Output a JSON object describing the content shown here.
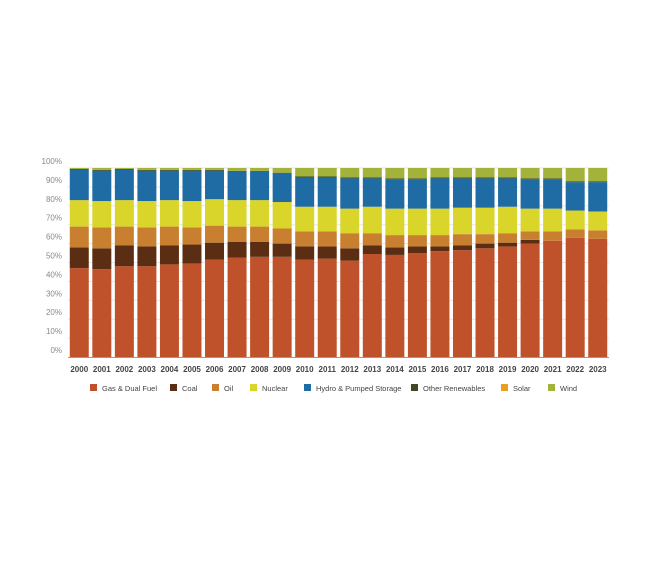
{
  "chart_data": {
    "type": "bar",
    "stacked": "percent",
    "categories": [
      "2000",
      "2001",
      "2002",
      "2003",
      "2004",
      "2005",
      "2006",
      "2007",
      "2008",
      "2009",
      "2010",
      "2011",
      "2012",
      "2013",
      "2014",
      "2015",
      "2016",
      "2017",
      "2018",
      "2019",
      "2020",
      "2021",
      "2022",
      "2023"
    ],
    "series": [
      {
        "name": "Gas & Dual Fuel",
        "color": "#c0522b",
        "values": [
          47,
          46.5,
          48,
          48,
          49,
          49.5,
          51.5,
          52.5,
          53,
          53,
          51.5,
          52,
          51,
          54.5,
          54,
          55,
          56,
          56.5,
          57.5,
          58.5,
          60,
          61.5,
          63,
          62.5
        ]
      },
      {
        "name": "Coal",
        "color": "#5b2e13",
        "values": [
          11,
          11,
          11,
          10.5,
          10,
          10,
          9,
          8.5,
          8,
          7,
          7,
          6.5,
          6.5,
          4.5,
          4,
          3.5,
          2.5,
          2.5,
          2.5,
          2,
          2,
          0,
          0,
          0
        ]
      },
      {
        "name": "Oil",
        "color": "#c88030",
        "values": [
          11,
          11,
          10,
          10,
          10,
          9,
          9,
          8,
          8,
          8,
          8,
          8,
          8,
          6.5,
          6.5,
          6,
          6,
          6,
          5,
          5,
          4.5,
          5,
          4.5,
          4.5
        ]
      },
      {
        "name": "Nuclear",
        "color": "#d9d52a",
        "values": [
          14,
          14,
          14,
          14,
          14,
          14,
          14,
          14,
          14,
          14,
          13,
          13,
          13,
          14,
          14,
          14,
          14,
          14,
          14,
          14,
          12,
          12,
          10,
          10
        ]
      },
      {
        "name": "Hydro & Pumped Storage",
        "color": "#1f6ba3",
        "values": [
          16,
          16,
          16,
          16,
          15.5,
          16,
          15,
          15,
          15,
          15,
          15.5,
          15.5,
          16,
          15,
          15.5,
          15.5,
          16,
          15.5,
          15.5,
          15,
          15.5,
          15.5,
          15,
          15.5
        ]
      },
      {
        "name": "Other Renewables",
        "color": "#3d4a24",
        "values": [
          0.5,
          0.5,
          0.5,
          0.5,
          0.5,
          0.5,
          0.5,
          0.5,
          0.5,
          0.5,
          0.5,
          0.5,
          0.5,
          0.5,
          0.5,
          0.5,
          0.5,
          0.5,
          0.5,
          0.5,
          0.5,
          0.5,
          0.5,
          0.5
        ]
      },
      {
        "name": "Solar",
        "color": "#e8a020",
        "values": [
          0,
          0,
          0,
          0,
          0,
          0,
          0,
          0,
          0,
          0,
          0,
          0,
          0,
          0,
          0,
          0,
          0,
          0,
          0,
          0,
          0,
          0,
          0,
          0
        ]
      },
      {
        "name": "Wind",
        "color": "#a3b23b",
        "values": [
          0.5,
          1,
          0.5,
          1,
          1,
          1,
          1,
          1.5,
          1.5,
          2.5,
          4.5,
          4.5,
          5,
          5,
          5.5,
          5.5,
          5,
          5,
          5,
          5,
          5.5,
          5.5,
          7,
          7
        ]
      }
    ],
    "yticks": [
      "0%",
      "10%",
      "20%",
      "30%",
      "40%",
      "50%",
      "60%",
      "70%",
      "80%",
      "90%",
      "100%"
    ],
    "ylim": [
      0,
      100
    ],
    "title": "",
    "xlabel": "",
    "ylabel": "",
    "grid": true,
    "legend_position": "bottom"
  }
}
